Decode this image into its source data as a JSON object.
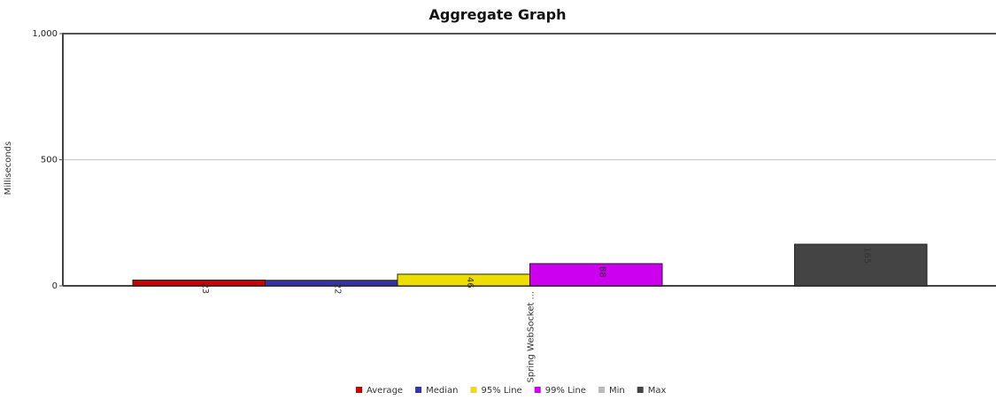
{
  "chart_data": {
    "type": "bar",
    "title": "Aggregate Graph",
    "xlabel": "",
    "ylabel": "Milliseconds",
    "ylim": [
      0,
      1000
    ],
    "y_ticks": [
      {
        "value": 0,
        "label": "0"
      },
      {
        "value": 500,
        "label": "500"
      },
      {
        "value": 1000,
        "label": "1,000"
      }
    ],
    "grid": true,
    "legend_position": "bottom",
    "categories": [
      "Spring WebSocket ..."
    ],
    "series": [
      {
        "name": "Average",
        "color": "#cc0000",
        "values": [
          23
        ],
        "label": "23"
      },
      {
        "name": "Median",
        "color": "#3333aa",
        "values": [
          22
        ],
        "label": "22"
      },
      {
        "name": "95% Line",
        "color": "#eedd00",
        "values": [
          46
        ],
        "label": "46"
      },
      {
        "name": "99% Line",
        "color": "#cc00ee",
        "values": [
          88
        ],
        "label": "88"
      },
      {
        "name": "Min",
        "color": "#bbbbbb",
        "values": [
          0
        ],
        "label": ""
      },
      {
        "name": "Max",
        "color": "#444444",
        "values": [
          165
        ],
        "label": "165"
      }
    ]
  }
}
